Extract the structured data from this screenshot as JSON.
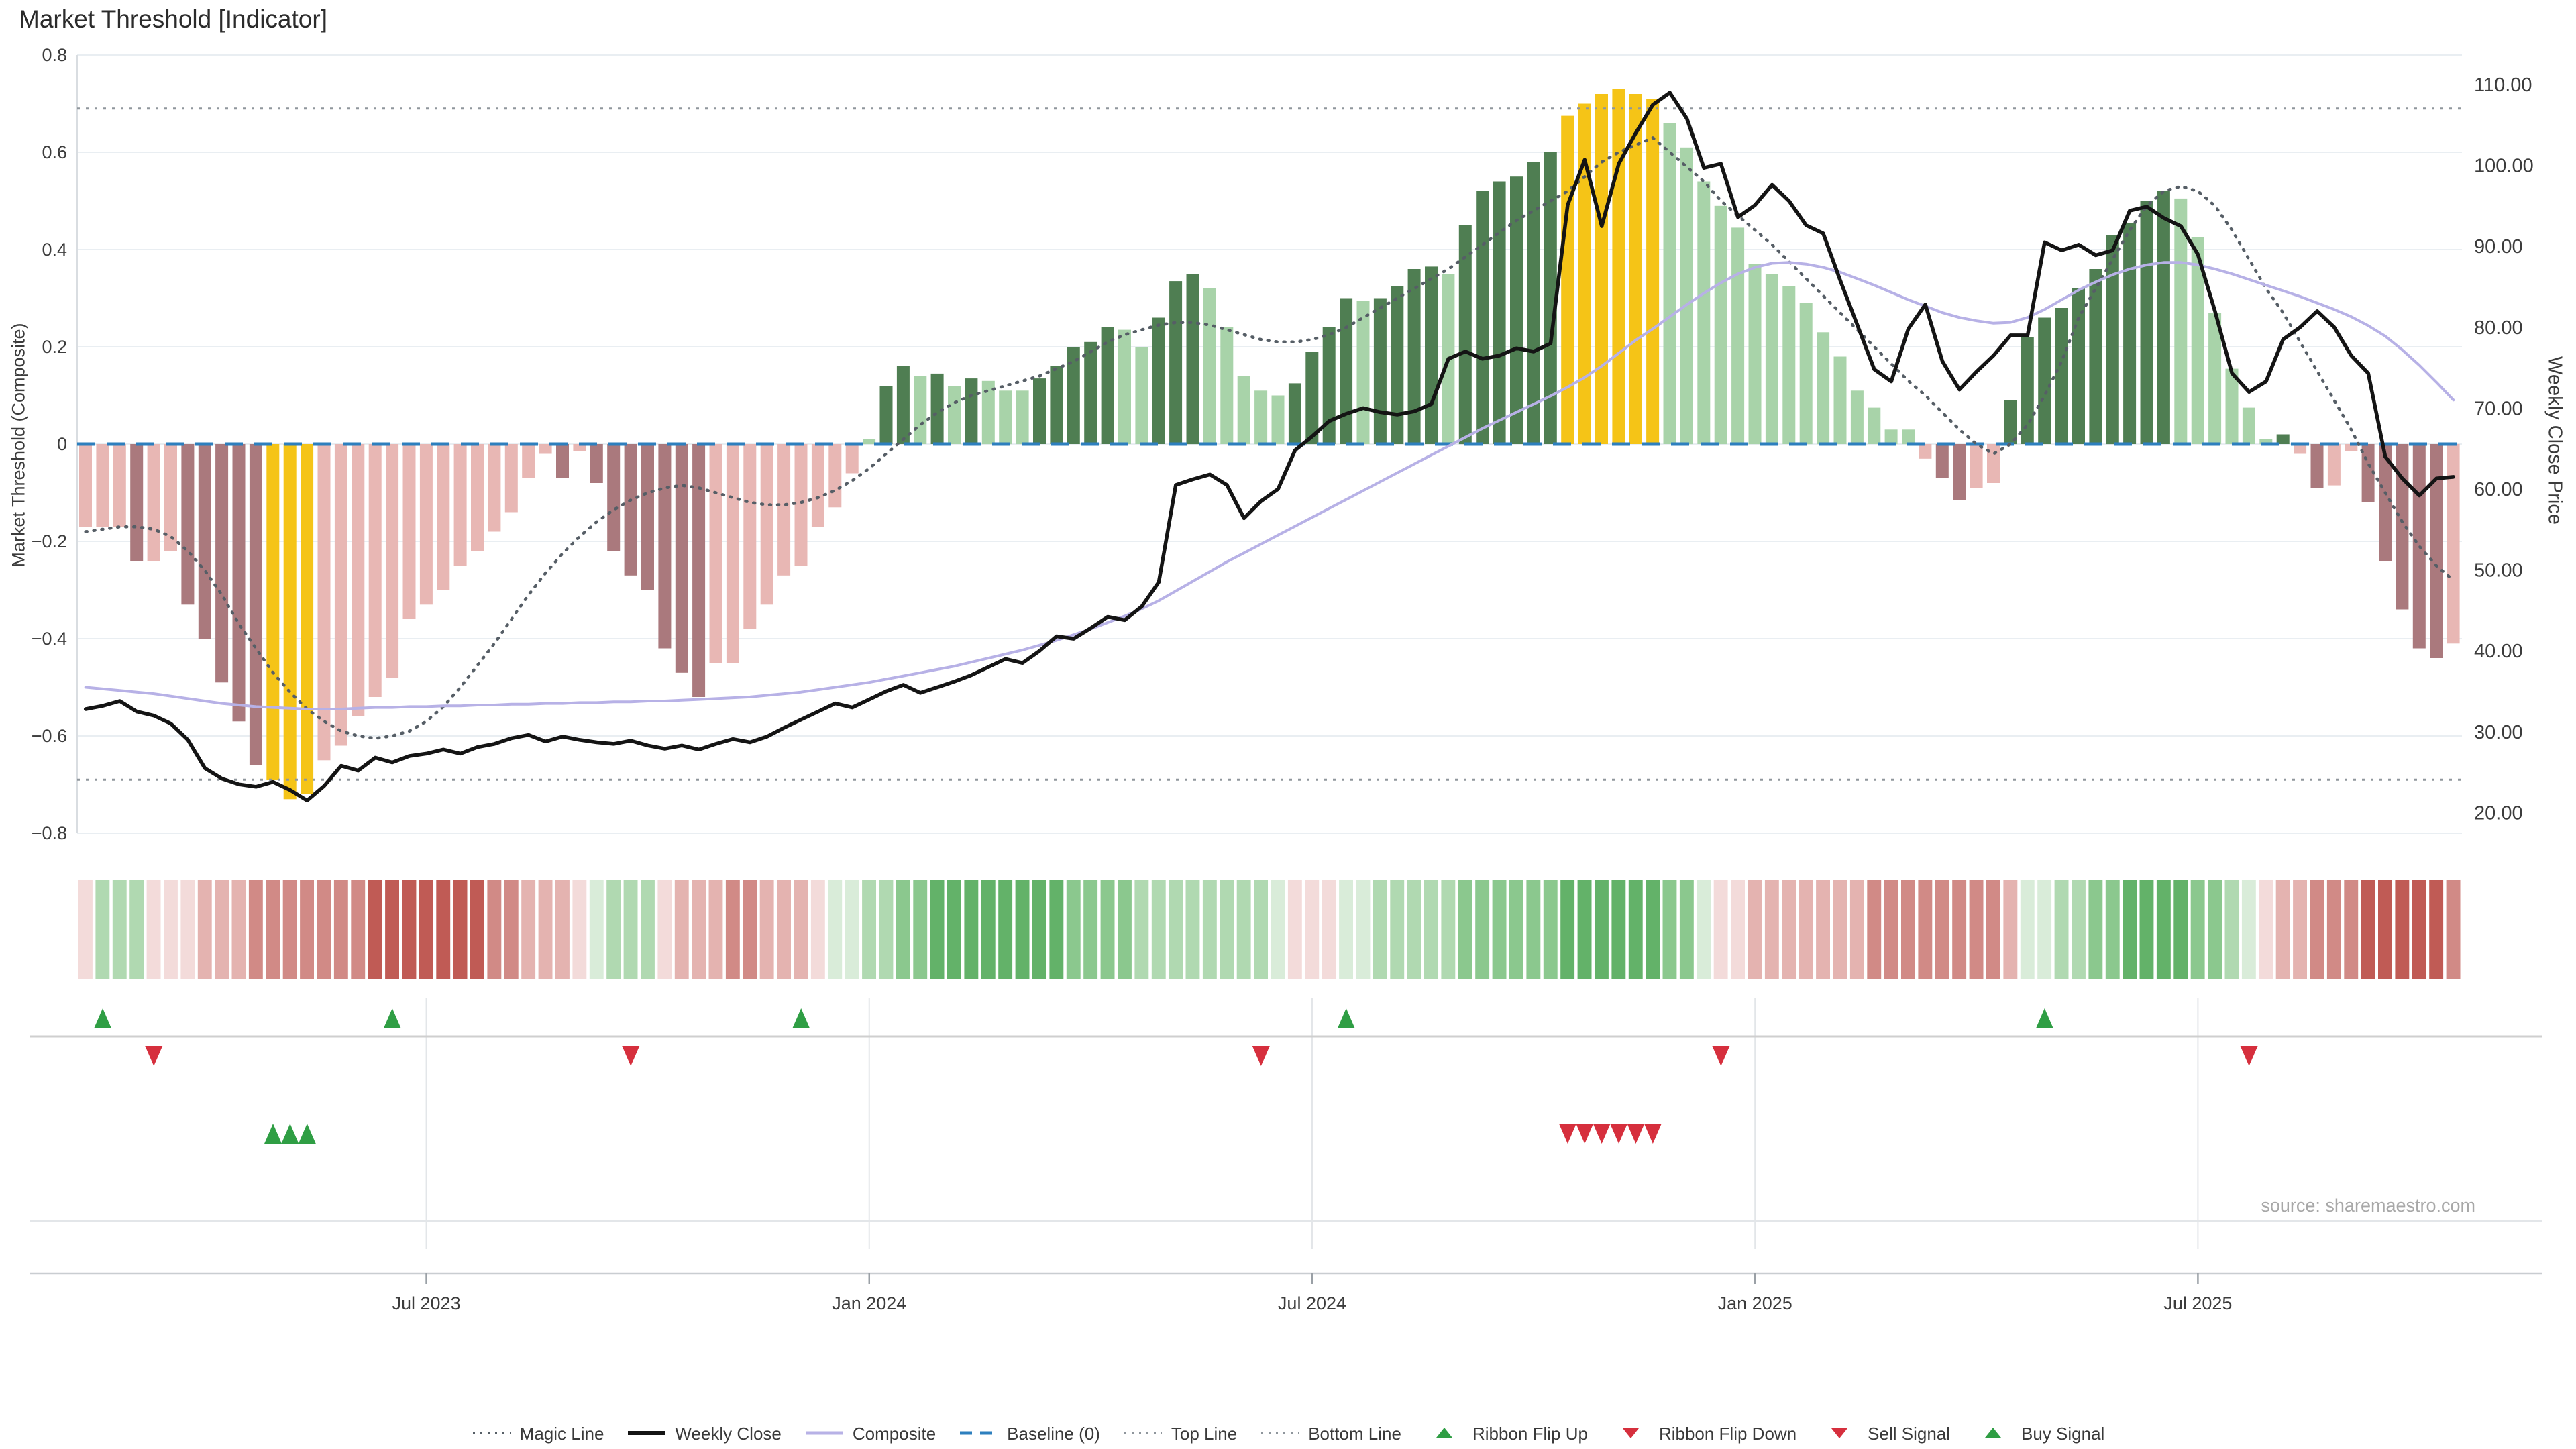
{
  "title": "Market Threshold [Indicator]",
  "source_note": "source: sharemaestro.com",
  "axes": {
    "left_label": "Market Threshold (Composite)",
    "right_label": "Weekly Close Price",
    "left_tick_labels": [
      "0.8",
      "0.6",
      "0.4",
      "0.2",
      "0",
      "−0.2",
      "−0.4",
      "−0.6",
      "−0.8"
    ],
    "left_tick_values": [
      0.8,
      0.6,
      0.4,
      0.2,
      0,
      -0.2,
      -0.4,
      -0.6,
      -0.8
    ],
    "right_tick_labels": [
      "110.00",
      "100.00",
      "90.00",
      "80.00",
      "70.00",
      "60.00",
      "50.00",
      "40.00",
      "30.00",
      "20.00"
    ],
    "right_tick_values": [
      110,
      100,
      90,
      80,
      70,
      60,
      50,
      40,
      30,
      20
    ],
    "x_ticks": [
      {
        "label": "Jul 2023",
        "index": 20
      },
      {
        "label": "Jan 2024",
        "index": 46
      },
      {
        "label": "Jul 2024",
        "index": 72
      },
      {
        "label": "Jan 2025",
        "index": 98
      },
      {
        "label": "Jul 2025",
        "index": 124
      }
    ]
  },
  "legend": {
    "items": [
      {
        "label": "Magic Line",
        "swatch": "dotted-gray-line"
      },
      {
        "label": "Weekly Close",
        "swatch": "black-line"
      },
      {
        "label": "Composite",
        "swatch": "purple-line"
      },
      {
        "label": "Baseline (0)",
        "swatch": "blue-dashed-line"
      },
      {
        "label": "Top Line",
        "swatch": "dotted-gray-line-small"
      },
      {
        "label": "Bottom Line",
        "swatch": "dotted-gray-line-small"
      },
      {
        "label": "Ribbon Flip Up",
        "swatch": "green-up-triangle"
      },
      {
        "label": "Ribbon Flip Down",
        "swatch": "red-down-triangle"
      },
      {
        "label": "Sell Signal",
        "swatch": "red-down-triangle"
      },
      {
        "label": "Buy Signal",
        "swatch": "green-up-triangle"
      }
    ]
  },
  "colors": {
    "bar_neg_light": "#e8b7b4",
    "bar_neg_dark": "#aa797d",
    "bar_pos_light": "#a8d3a9",
    "bar_pos_dark": "#4f7e52",
    "bar_gold": "#f5c417",
    "weekly_close": "#141414",
    "composite": "#b7b1e6",
    "magic": "#565e66",
    "baseline": "#2d7fbe",
    "top_bottom": "#8f969c",
    "grid": "#e9eef2",
    "axis_line": "#d9dde1",
    "marker_green": "#2f9e44",
    "marker_red": "#d62f3d",
    "ribbon": {
      "r1": "#f3dbda",
      "r2": "#e4b3b0",
      "r3": "#d18a86",
      "r4": "#c05b55",
      "g1": "#d9ecd9",
      "g2": "#b0d9b1",
      "g3": "#8bc88e",
      "g4": "#63b269"
    }
  },
  "chart_data": {
    "type": "bar",
    "note": "weekly data Feb 2023 - Oct 2025; bars = Market Threshold (left axis), lines: Weekly Close & Composite (right price axis), Magic Line (left axis)",
    "n_points": 140,
    "left_ylim": [
      -0.8,
      0.8
    ],
    "right_ylim": [
      20,
      110
    ],
    "baseline": 0,
    "top_line": 0.69,
    "bottom_line": -0.69,
    "grid": true,
    "legend_position": "bottom",
    "threshold": [
      -0.17,
      -0.17,
      -0.17,
      -0.24,
      -0.24,
      -0.22,
      -0.33,
      -0.4,
      -0.49,
      -0.57,
      -0.66,
      -0.69,
      -0.73,
      -0.72,
      -0.65,
      -0.62,
      -0.56,
      -0.52,
      -0.48,
      -0.36,
      -0.33,
      -0.3,
      -0.25,
      -0.22,
      -0.18,
      -0.14,
      -0.07,
      -0.02,
      -0.07,
      -0.015,
      -0.08,
      -0.22,
      -0.27,
      -0.3,
      -0.42,
      -0.47,
      -0.52,
      -0.45,
      -0.45,
      -0.38,
      -0.33,
      -0.27,
      -0.25,
      -0.17,
      -0.13,
      -0.06,
      0.01,
      0.12,
      0.16,
      0.14,
      0.145,
      0.12,
      0.135,
      0.13,
      0.11,
      0.11,
      0.135,
      0.16,
      0.2,
      0.21,
      0.24,
      0.235,
      0.2,
      0.26,
      0.335,
      0.35,
      0.32,
      0.24,
      0.14,
      0.11,
      0.1,
      0.125,
      0.19,
      0.24,
      0.3,
      0.295,
      0.3,
      0.325,
      0.36,
      0.365,
      0.35,
      0.45,
      0.52,
      0.54,
      0.55,
      0.58,
      0.6,
      0.675,
      0.7,
      0.72,
      0.73,
      0.72,
      0.71,
      0.66,
      0.61,
      0.54,
      0.49,
      0.445,
      0.37,
      0.35,
      0.325,
      0.29,
      0.23,
      0.18,
      0.11,
      0.075,
      0.03,
      0.03,
      -0.03,
      -0.07,
      -0.115,
      -0.09,
      -0.08,
      0.09,
      0.22,
      0.26,
      0.28,
      0.32,
      0.36,
      0.43,
      0.455,
      0.5,
      0.52,
      0.505,
      0.425,
      0.27,
      0.155,
      0.075,
      0.01,
      0.02,
      -0.02,
      -0.09,
      -0.085,
      -0.015,
      -0.12,
      -0.24,
      -0.34,
      -0.42,
      -0.44,
      -0.41
    ],
    "magic_line": [
      -0.18,
      -0.175,
      -0.17,
      -0.17,
      -0.175,
      -0.19,
      -0.22,
      -0.26,
      -0.31,
      -0.37,
      -0.42,
      -0.47,
      -0.51,
      -0.545,
      -0.57,
      -0.59,
      -0.6,
      -0.605,
      -0.6,
      -0.59,
      -0.57,
      -0.54,
      -0.5,
      -0.455,
      -0.41,
      -0.36,
      -0.31,
      -0.265,
      -0.225,
      -0.19,
      -0.16,
      -0.135,
      -0.115,
      -0.1,
      -0.09,
      -0.085,
      -0.09,
      -0.1,
      -0.11,
      -0.12,
      -0.125,
      -0.125,
      -0.12,
      -0.11,
      -0.095,
      -0.075,
      -0.05,
      -0.02,
      0.01,
      0.04,
      0.065,
      0.085,
      0.1,
      0.11,
      0.12,
      0.13,
      0.14,
      0.155,
      0.17,
      0.19,
      0.21,
      0.225,
      0.235,
      0.245,
      0.25,
      0.25,
      0.245,
      0.235,
      0.225,
      0.215,
      0.21,
      0.21,
      0.215,
      0.225,
      0.24,
      0.26,
      0.28,
      0.3,
      0.32,
      0.34,
      0.36,
      0.385,
      0.41,
      0.435,
      0.46,
      0.48,
      0.5,
      0.52,
      0.55,
      0.58,
      0.6,
      0.615,
      0.63,
      0.6,
      0.57,
      0.54,
      0.5,
      0.47,
      0.44,
      0.41,
      0.375,
      0.34,
      0.305,
      0.27,
      0.235,
      0.2,
      0.165,
      0.13,
      0.1,
      0.065,
      0.03,
      0.0,
      -0.02,
      0.0,
      0.04,
      0.1,
      0.17,
      0.26,
      0.32,
      0.38,
      0.44,
      0.49,
      0.52,
      0.53,
      0.52,
      0.49,
      0.44,
      0.38,
      0.32,
      0.27,
      0.21,
      0.15,
      0.09,
      0.03,
      -0.04,
      -0.1,
      -0.16,
      -0.21,
      -0.25,
      -0.28
    ],
    "weekly_close": [
      32.8,
      33.2,
      33.8,
      32.5,
      32.0,
      31.0,
      29.0,
      25.5,
      24.2,
      23.5,
      23.2,
      23.8,
      22.8,
      21.5,
      23.3,
      25.8,
      25.2,
      26.8,
      26.2,
      27.0,
      27.3,
      27.8,
      27.3,
      28.1,
      28.5,
      29.2,
      29.6,
      28.8,
      29.4,
      29.0,
      28.7,
      28.5,
      28.9,
      28.3,
      27.9,
      28.3,
      27.8,
      28.5,
      29.1,
      28.7,
      29.4,
      30.5,
      31.5,
      32.5,
      33.5,
      33.0,
      34.0,
      35.0,
      35.8,
      34.8,
      35.5,
      36.2,
      37.0,
      38.0,
      39.0,
      38.5,
      40.0,
      41.8,
      41.5,
      42.8,
      44.2,
      43.8,
      45.5,
      48.5,
      60.5,
      61.2,
      61.8,
      60.5,
      56.4,
      58.5,
      60.0,
      64.8,
      66.5,
      68.4,
      69.3,
      70.0,
      69.5,
      69.2,
      69.6,
      70.5,
      76.1,
      77.0,
      76.1,
      76.5,
      77.4,
      77.0,
      78.0,
      95.1,
      100.7,
      92.5,
      100.2,
      104.0,
      107.5,
      109.0,
      105.8,
      99.7,
      100.2,
      93.6,
      95.1,
      97.6,
      95.6,
      92.6,
      91.6,
      85.8,
      80.3,
      74.8,
      73.3,
      79.8,
      82.8,
      75.8,
      72.3,
      74.5,
      76.5,
      79.0,
      79.0,
      90.5,
      89.5,
      90.2,
      88.9,
      89.5,
      94.4,
      94.9,
      93.5,
      92.5,
      89.0,
      82.0,
      74.3,
      72.0,
      73.3,
      78.5,
      80.0,
      82.0,
      80.0,
      76.5,
      74.3,
      64.0,
      61.3,
      59.2,
      61.3,
      61.5
    ],
    "composite": [
      35.5,
      35.3,
      35.1,
      34.9,
      34.7,
      34.4,
      34.1,
      33.8,
      33.5,
      33.3,
      33.1,
      33.0,
      32.9,
      32.8,
      32.8,
      32.8,
      32.9,
      33.0,
      33.0,
      33.1,
      33.1,
      33.2,
      33.2,
      33.3,
      33.3,
      33.4,
      33.4,
      33.5,
      33.5,
      33.6,
      33.6,
      33.7,
      33.7,
      33.8,
      33.8,
      33.9,
      34.0,
      34.1,
      34.2,
      34.3,
      34.5,
      34.7,
      34.9,
      35.2,
      35.5,
      35.8,
      36.1,
      36.5,
      36.9,
      37.3,
      37.7,
      38.1,
      38.6,
      39.1,
      39.6,
      40.1,
      40.7,
      41.3,
      42.0,
      42.7,
      43.5,
      44.3,
      45.2,
      46.2,
      47.4,
      48.6,
      49.8,
      51.0,
      52.1,
      53.2,
      54.3,
      55.4,
      56.5,
      57.6,
      58.7,
      59.8,
      60.9,
      62.0,
      63.1,
      64.2,
      65.3,
      66.4,
      67.5,
      68.5,
      69.5,
      70.5,
      71.5,
      72.6,
      73.8,
      75.2,
      76.8,
      78.4,
      79.8,
      81.3,
      82.8,
      84.2,
      85.5,
      86.6,
      87.4,
      87.9,
      88.0,
      87.8,
      87.4,
      86.8,
      86.0,
      85.2,
      84.3,
      83.4,
      82.6,
      81.8,
      81.2,
      80.8,
      80.5,
      80.6,
      81.2,
      82.2,
      83.4,
      84.6,
      85.6,
      86.5,
      87.2,
      87.7,
      88.0,
      88.0,
      87.7,
      87.2,
      86.6,
      85.9,
      85.2,
      84.5,
      83.8,
      83.0,
      82.2,
      81.3,
      80.2,
      78.9,
      77.2,
      75.3,
      73.2,
      71.0
    ],
    "gold_highlight_indices": [
      11,
      12,
      13,
      87,
      88,
      89,
      90,
      91,
      92
    ],
    "buy_signal_indices": [
      11,
      12,
      13
    ],
    "sell_signal_indices": [
      87,
      88,
      89,
      90,
      91,
      92
    ],
    "ribbon_flip_up_indices": [
      1,
      18,
      42,
      74,
      115
    ],
    "ribbon_flip_down_indices": [
      4,
      32,
      69,
      96,
      127
    ],
    "ribbon": [
      "r1",
      "g2",
      "g2",
      "g2",
      "r1",
      "r1",
      "r1",
      "r2",
      "r2",
      "r2",
      "r3",
      "r3",
      "r3",
      "r3",
      "r3",
      "r3",
      "r3",
      "r4",
      "r4",
      "r4",
      "r4",
      "r4",
      "r4",
      "r4",
      "r3",
      "r3",
      "r2",
      "r2",
      "r2",
      "r1",
      "g1",
      "g2",
      "g2",
      "g2",
      "r1",
      "r2",
      "r2",
      "r2",
      "r3",
      "r3",
      "r2",
      "r2",
      "r2",
      "r1",
      "g1",
      "g1",
      "g2",
      "g2",
      "g3",
      "g3",
      "g4",
      "g4",
      "g4",
      "g4",
      "g4",
      "g4",
      "g4",
      "g4",
      "g3",
      "g3",
      "g3",
      "g3",
      "g2",
      "g2",
      "g2",
      "g2",
      "g2",
      "g2",
      "g2",
      "g2",
      "g1",
      "r1",
      "r1",
      "r1",
      "g1",
      "g1",
      "g2",
      "g2",
      "g2",
      "g2",
      "g2",
      "g3",
      "g3",
      "g3",
      "g3",
      "g3",
      "g3",
      "g4",
      "g4",
      "g4",
      "g4",
      "g4",
      "g4",
      "g3",
      "g3",
      "g1",
      "r1",
      "r1",
      "r2",
      "r2",
      "r2",
      "r2",
      "r2",
      "r2",
      "r2",
      "r3",
      "r3",
      "r3",
      "r3",
      "r3",
      "r3",
      "r3",
      "r3",
      "r2",
      "g1",
      "g1",
      "g2",
      "g2",
      "g3",
      "g3",
      "g4",
      "g4",
      "g4",
      "g4",
      "g3",
      "g3",
      "g2",
      "g1",
      "r1",
      "r2",
      "r2",
      "r3",
      "r3",
      "r3",
      "r4",
      "r4",
      "r4",
      "r4",
      "r4",
      "r3"
    ]
  }
}
